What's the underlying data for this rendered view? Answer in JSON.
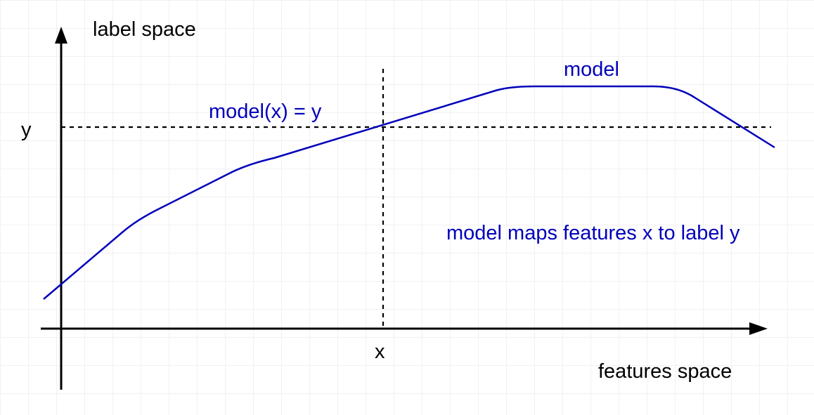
{
  "diagram": {
    "y_axis_label": "label space",
    "x_axis_label": "features space",
    "x_marker": "x",
    "y_marker": "y",
    "curve_label": "model",
    "equation": "model(x) = y",
    "description": "model maps features x to label y",
    "colors": {
      "curve": "#0000BB",
      "axes": "#000000",
      "grid": "#f1f1f1",
      "background": "#ffffff"
    }
  }
}
